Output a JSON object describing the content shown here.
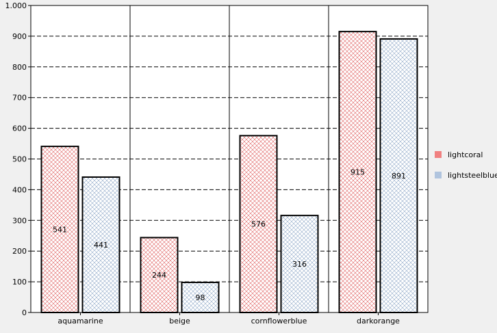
{
  "chart_data": {
    "type": "bar",
    "categories": [
      "aquamarine",
      "beige",
      "cornflowerblue",
      "darkorange"
    ],
    "series": [
      {
        "name": "lightcoral",
        "values": [
          541,
          244,
          576,
          915
        ],
        "color": "#f08080",
        "hatch_color": "#e06060"
      },
      {
        "name": "lightsteelblue",
        "values": [
          441,
          98,
          316,
          891
        ],
        "color": "#b0c4de",
        "hatch_color": "#8fa8c8"
      }
    ],
    "ylim": [
      0,
      1000
    ],
    "yticks": [
      0,
      100,
      200,
      300,
      400,
      500,
      600,
      700,
      800,
      900,
      1000
    ],
    "ytick_labels": [
      "0",
      "100",
      "200",
      "300",
      "400",
      "500",
      "600",
      "700",
      "800",
      "900",
      "1.000"
    ],
    "grid": true,
    "legend_position": "right",
    "data_labels": true
  }
}
